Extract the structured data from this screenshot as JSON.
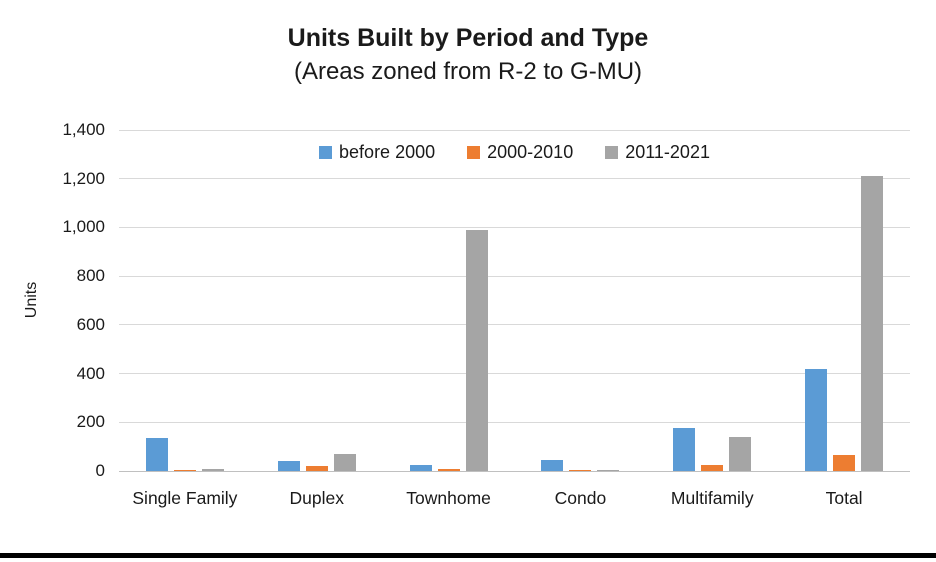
{
  "chart_data": {
    "type": "bar",
    "title": "Units Built by Period and Type",
    "subtitle": "(Areas zoned from R-2 to G-MU)",
    "ylabel": "Units",
    "xlabel": "",
    "ylim": [
      0,
      1400
    ],
    "ytick_step": 200,
    "grid": true,
    "legend_position": "top-center",
    "categories": [
      "Single Family",
      "Duplex",
      "Townhome",
      "Condo",
      "Multifamily",
      "Total"
    ],
    "series": [
      {
        "name": "before 2000",
        "color": "#5B9BD5",
        "values": [
          135,
          40,
          25,
          45,
          175,
          420
        ]
      },
      {
        "name": "2000-2010",
        "color": "#ED7D31",
        "values": [
          5,
          20,
          10,
          5,
          25,
          65
        ]
      },
      {
        "name": "2011-2021",
        "color": "#A5A5A5",
        "values": [
          10,
          70,
          990,
          3,
          140,
          1210
        ]
      }
    ]
  },
  "style_colors": {
    "gridline": "#D9D9D9",
    "baseline": "#C0C0C0",
    "text": "#1A1A1A",
    "bottom_rule": "#000000"
  }
}
